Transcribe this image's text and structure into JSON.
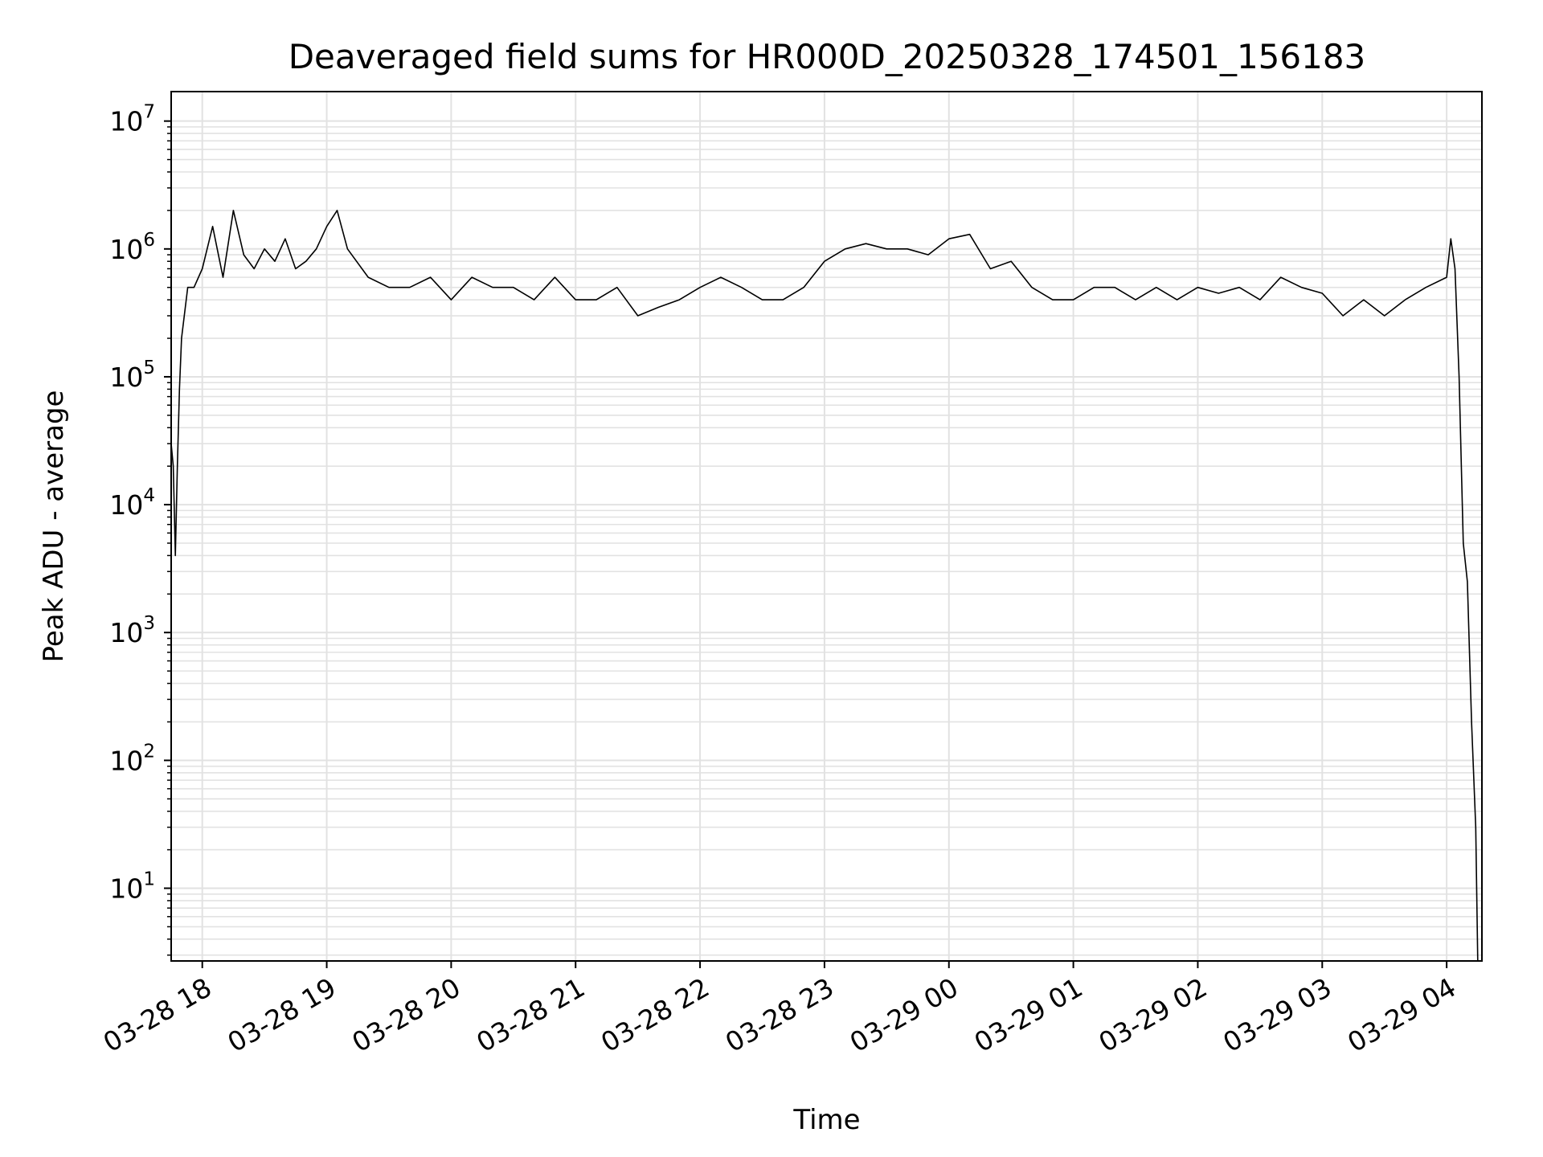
{
  "chart_data": {
    "type": "line",
    "title": "Deaveraged field sums for HR000D_20250328_174501_156183",
    "xlabel": "Time",
    "ylabel": "Peak ADU - average",
    "yscale": "log",
    "ylim": [
      2.7,
      17000000
    ],
    "xlim": [
      "03-28 17:45",
      "03-29 04:17"
    ],
    "x_ticks": [
      "03-28 18",
      "03-28 19",
      "03-28 20",
      "03-28 21",
      "03-28 22",
      "03-28 23",
      "03-29 00",
      "03-29 01",
      "03-29 02",
      "03-29 03",
      "03-29 04"
    ],
    "y_ticks": [
      {
        "value": 10,
        "base": "10",
        "exp": "1"
      },
      {
        "value": 100,
        "base": "10",
        "exp": "2"
      },
      {
        "value": 1000,
        "base": "10",
        "exp": "3"
      },
      {
        "value": 10000,
        "base": "10",
        "exp": "4"
      },
      {
        "value": 100000,
        "base": "10",
        "exp": "5"
      },
      {
        "value": 1000000,
        "base": "10",
        "exp": "6"
      },
      {
        "value": 10000000,
        "base": "10",
        "exp": "7"
      }
    ],
    "grid": true,
    "line_color": "#000000",
    "grid_color": "#e2e2e2",
    "series": [
      {
        "x": [
          "03-28 17:45",
          "03-28 17:46",
          "03-28 17:47",
          "03-28 17:48",
          "03-28 17:49",
          "03-28 17:50",
          "03-28 17:53",
          "03-28 17:56",
          "03-28 18:00",
          "03-28 18:05",
          "03-28 18:10",
          "03-28 18:15",
          "03-28 18:20",
          "03-28 18:25",
          "03-28 18:30",
          "03-28 18:35",
          "03-28 18:40",
          "03-28 18:45",
          "03-28 18:50",
          "03-28 18:55",
          "03-28 19:00",
          "03-28 19:05",
          "03-28 19:10",
          "03-28 19:20",
          "03-28 19:30",
          "03-28 19:40",
          "03-28 19:50",
          "03-28 20:00",
          "03-28 20:10",
          "03-28 20:20",
          "03-28 20:30",
          "03-28 20:40",
          "03-28 20:50",
          "03-28 21:00",
          "03-28 21:10",
          "03-28 21:20",
          "03-28 21:30",
          "03-28 21:40",
          "03-28 21:50",
          "03-28 22:00",
          "03-28 22:10",
          "03-28 22:20",
          "03-28 22:30",
          "03-28 22:40",
          "03-28 22:50",
          "03-28 23:00",
          "03-28 23:10",
          "03-28 23:20",
          "03-28 23:30",
          "03-28 23:40",
          "03-28 23:50",
          "03-29 00:00",
          "03-29 00:10",
          "03-29 00:20",
          "03-29 00:30",
          "03-29 00:40",
          "03-29 00:50",
          "03-29 01:00",
          "03-29 01:10",
          "03-29 01:20",
          "03-29 01:30",
          "03-29 01:40",
          "03-29 01:50",
          "03-29 02:00",
          "03-29 02:10",
          "03-29 02:20",
          "03-29 02:30",
          "03-29 02:40",
          "03-29 02:50",
          "03-29 03:00",
          "03-29 03:10",
          "03-29 03:20",
          "03-29 03:30",
          "03-29 03:40",
          "03-29 03:50",
          "03-29 04:00",
          "03-29 04:02",
          "03-29 04:04",
          "03-29 04:06",
          "03-29 04:08",
          "03-29 04:10",
          "03-29 04:12",
          "03-29 04:14",
          "03-29 04:15"
        ],
        "y": [
          30000,
          20000,
          4000,
          20000,
          80000,
          200000,
          500000,
          500000,
          700000,
          1500000,
          600000,
          2000000,
          900000,
          700000,
          1000000,
          800000,
          1200000,
          700000,
          800000,
          1000000,
          1500000,
          2000000,
          1000000,
          600000,
          500000,
          500000,
          600000,
          400000,
          600000,
          500000,
          500000,
          400000,
          600000,
          400000,
          400000,
          500000,
          300000,
          350000,
          400000,
          500000,
          600000,
          500000,
          400000,
          400000,
          500000,
          800000,
          1000000,
          1100000,
          1000000,
          1000000,
          900000,
          1200000,
          1300000,
          700000,
          800000,
          500000,
          400000,
          400000,
          500000,
          500000,
          400000,
          500000,
          400000,
          500000,
          450000,
          500000,
          400000,
          600000,
          500000,
          450000,
          300000,
          400000,
          300000,
          400000,
          500000,
          600000,
          1200000,
          700000,
          100000,
          5000,
          2500,
          200,
          30,
          2.7
        ]
      }
    ]
  }
}
